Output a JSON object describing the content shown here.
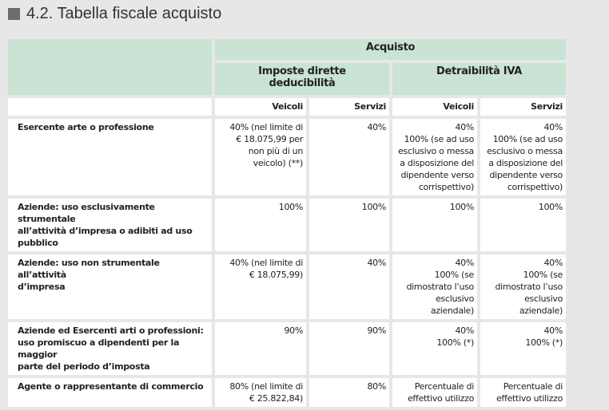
{
  "title": "4.2. Tabella fiscale acquisto",
  "table": {
    "top_header": "Acquisto",
    "group_headers": [
      "Imposte dirette\ndeducibilità",
      "Detraibilità IVA"
    ],
    "sub_headers": [
      "Veicoli",
      "Servizi",
      "Veicoli",
      "Servizi"
    ],
    "rows": [
      [
        "Esercente arte o professione",
        "40% (nel limite di\n€ 18.075,99 per\nnon più di un\nveicolo) (**)",
        "40%",
        "40%\n100% (se ad uso\nesclusivo o messa\na disposizione del\ndipendente verso\ncorrispettivo)",
        "40%\n100% (se ad uso\nesclusivo o messa\na disposizione del\ndipendente verso\ncorrispettivo)"
      ],
      [
        "Aziende: uso esclusivamente strumentale\nall’attività d’impresa o adibiti ad uso pubblico",
        "100%",
        "100%",
        "100%",
        "100%"
      ],
      [
        "Aziende: uso non strumentale all’attività\nd’impresa",
        "40% (nel limite di\n€ 18.075,99)",
        "40%",
        "40%\n100% (se\ndimostrato l’uso\nesclusivo aziendale)",
        "40%\n100% (se\ndimostrato l’uso\nesclusivo aziendale)"
      ],
      [
        "Aziende ed Esercenti arti o professioni:\nuso promiscuo a dipendenti per la maggior\nparte del periodo d’imposta",
        "90%",
        "90%",
        "40%\n100% (*)",
        "40%\n100% (*)"
      ],
      [
        "Agente o rappresentante di commercio",
        "80% (nel limite di\n€ 25.822,84)",
        "80%",
        "Percentuale di\neffettivo utilizzo",
        "Percentuale di\neffettivo utilizzo"
      ]
    ]
  }
}
